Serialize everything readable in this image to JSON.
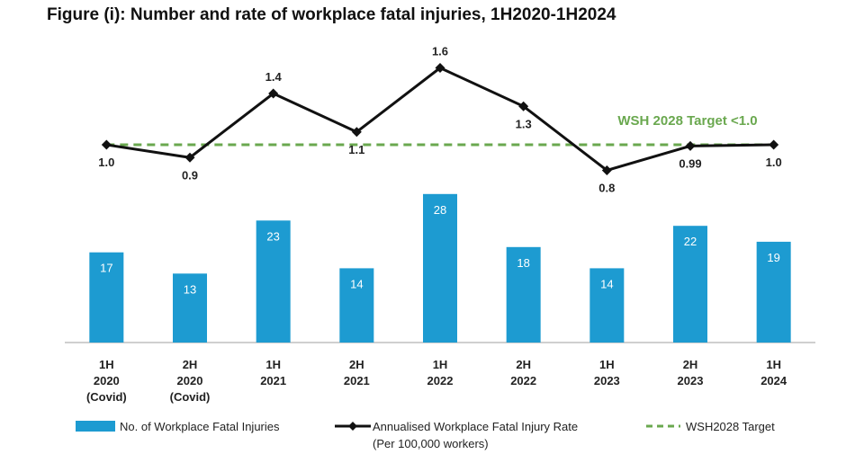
{
  "title": "Figure (i): Number and rate of workplace fatal injuries, 1H2020-1H2024",
  "chart_data": {
    "type": "bar",
    "categories": [
      [
        "1H",
        "2020",
        "(Covid)"
      ],
      [
        "2H",
        "2020",
        "(Covid)"
      ],
      [
        "1H",
        "2021"
      ],
      [
        "2H",
        "2021"
      ],
      [
        "1H",
        "2022"
      ],
      [
        "2H",
        "2022"
      ],
      [
        "1H",
        "2023"
      ],
      [
        "2H",
        "2023"
      ],
      [
        "1H",
        "2024"
      ]
    ],
    "series": [
      {
        "name": "No. of Workplace Fatal Injuries",
        "kind": "bar",
        "color": "#1d9bd1",
        "values": [
          17,
          13,
          23,
          14,
          28,
          18,
          14,
          22,
          19
        ]
      },
      {
        "name": "Annualised Workplace Fatal Injury Rate",
        "name_line2": "(Per 100,000 workers)",
        "kind": "line",
        "color": "#111111",
        "values": [
          1.0,
          0.9,
          1.4,
          1.1,
          1.6,
          1.3,
          0.8,
          0.99,
          1.0
        ],
        "labels": [
          "1.0",
          "0.9",
          "1.4",
          "1.1",
          "1.6",
          "1.3",
          "0.8",
          "0.99",
          "1.0"
        ]
      },
      {
        "name": "WSH2028 Target",
        "kind": "dashed-line",
        "color": "#6aa84f",
        "value": 1.0
      }
    ],
    "target_annotation": "WSH 2028 Target <1.0",
    "bar_ylim": [
      0,
      38
    ],
    "rate_ylim": [
      -0.55,
      1.68
    ],
    "legend_position": "bottom"
  }
}
